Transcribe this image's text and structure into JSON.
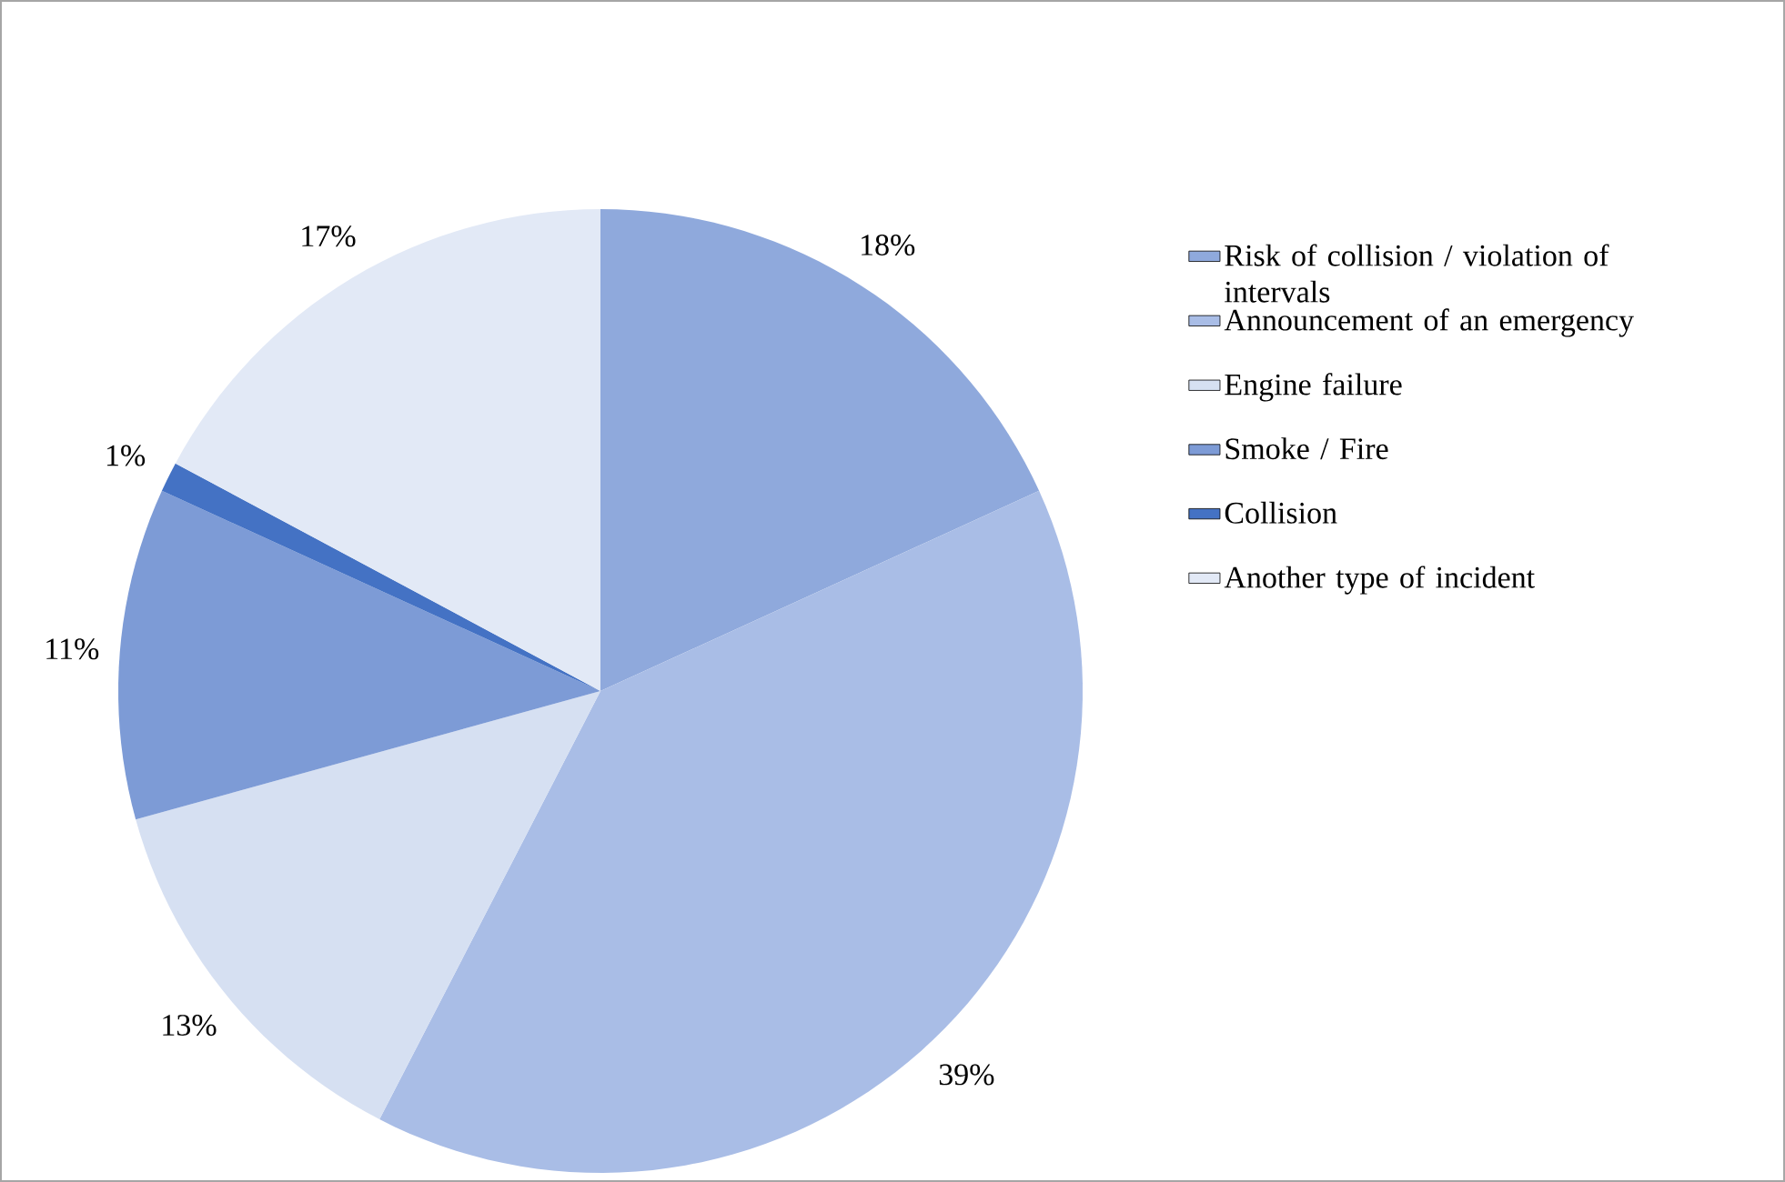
{
  "chart_data": {
    "type": "pie",
    "categories": [
      "Risk of collision / violation of intervals",
      "Announcement of an emergency",
      "Engine failure",
      "Smoke / Fire",
      "Collision",
      "Another type of incident"
    ],
    "values": [
      18,
      39,
      13,
      11,
      1,
      17
    ],
    "value_labels": [
      "18%",
      "39%",
      "13%",
      "11%",
      "1%",
      "17%"
    ],
    "colors": [
      "#8fa9dc",
      "#a9bde6",
      "#d6e0f2",
      "#7d9bd6",
      "#4472c4",
      "#e2e9f6"
    ],
    "legend": "right"
  }
}
